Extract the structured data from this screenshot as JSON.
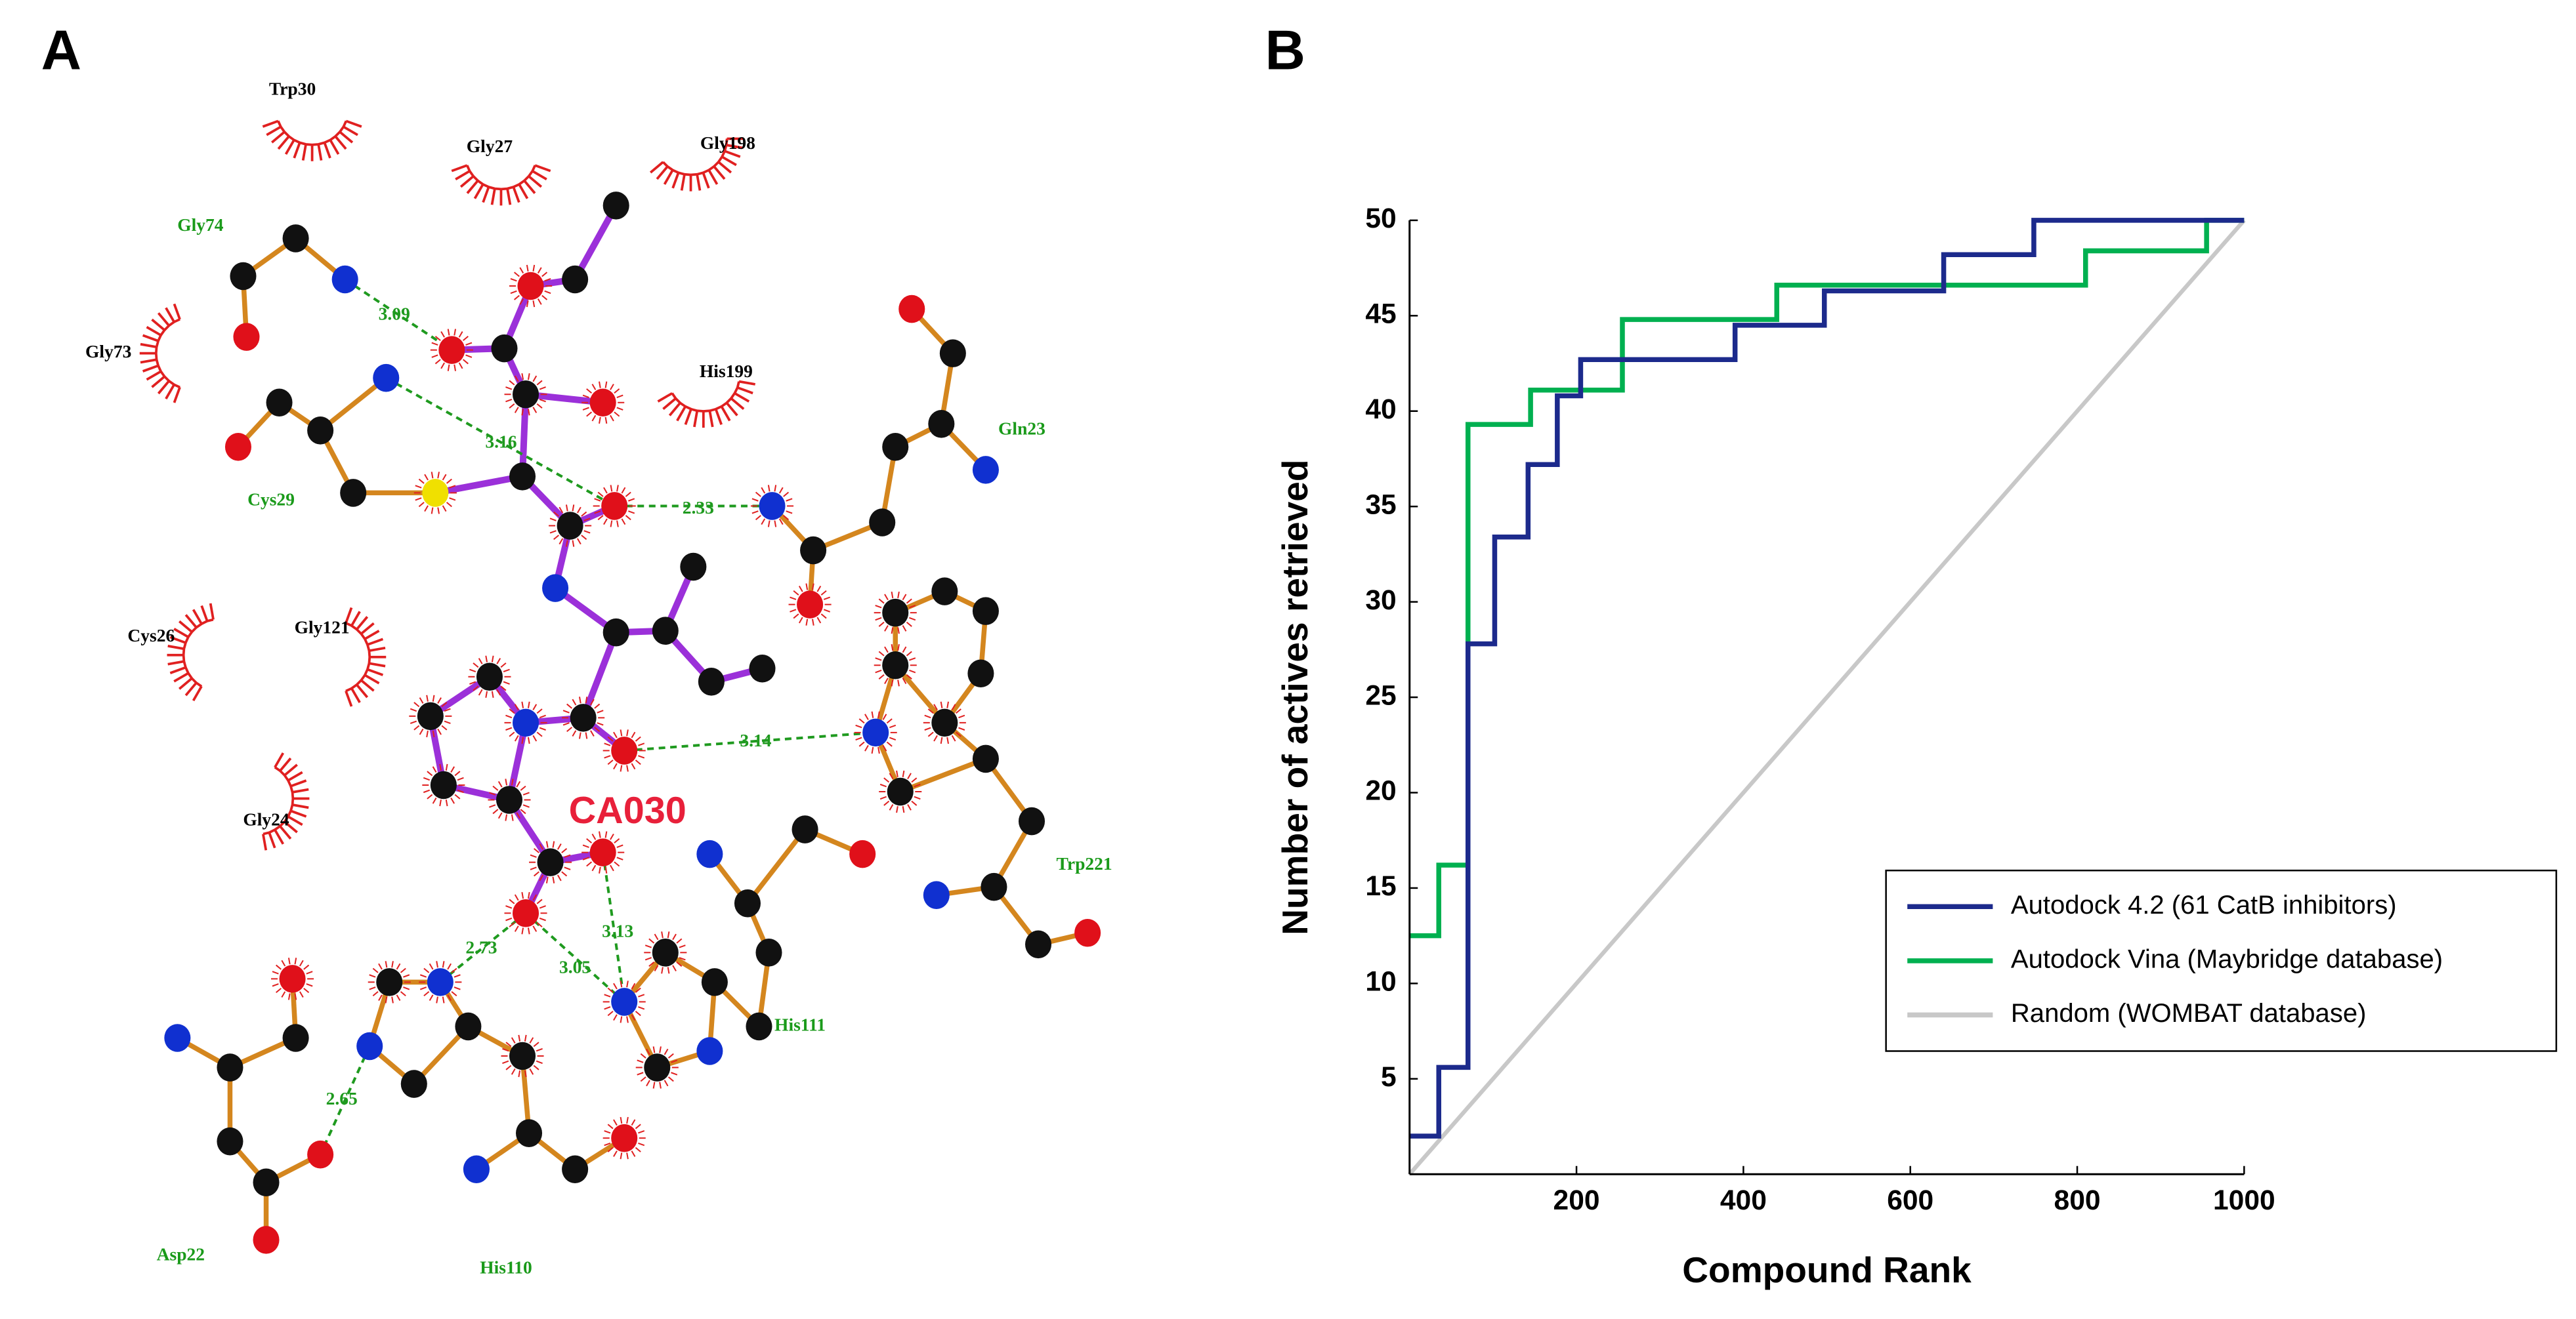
{
  "panels": [
    {
      "label": "A"
    },
    {
      "label": "B"
    }
  ],
  "diagram": {
    "ligand": "CA030",
    "residues": [
      "Gly74",
      "Cys29",
      "Gln23",
      "Trp221",
      "His111",
      "Asp22",
      "His110"
    ],
    "hydrophobic": [
      "Trp30",
      "Gly27",
      "Gly198",
      "Gly73",
      "His199",
      "Cys26",
      "Gly121",
      "Gly24"
    ],
    "hbonds": [
      3.09,
      3.16,
      2.33,
      3.14,
      2.73,
      3.05,
      3.13,
      2.65
    ]
  },
  "chart_data": {
    "type": "line",
    "xlabel": "Compound Rank",
    "ylabel": "Number of actives retrieved",
    "xlim": [
      0,
      1000
    ],
    "ylim": [
      0,
      50
    ],
    "xticks": [
      200,
      400,
      600,
      800,
      1000
    ],
    "yticks": [
      5,
      10,
      15,
      20,
      25,
      30,
      35,
      40,
      45,
      50
    ],
    "legend": "lower right",
    "series": [
      {
        "name": "Autodock 4.2 (61 CatB inhibitors)",
        "color": "#1c2a8c",
        "step": true,
        "x": [
          0,
          35,
          70,
          102,
          142,
          177,
          205,
          390,
          497,
          640,
          748,
          1000
        ],
        "values": [
          2,
          5.6,
          27.8,
          33.4,
          37.2,
          40.8,
          42.7,
          44.5,
          46.3,
          48.2,
          50,
          50
        ]
      },
      {
        "name": "Autodock Vina (Maybridge database)",
        "color": "#00b050",
        "step": true,
        "x": [
          0,
          35,
          70,
          145,
          255,
          440,
          810,
          955,
          1000
        ],
        "values": [
          12.5,
          16.2,
          39.3,
          41.1,
          44.8,
          46.6,
          48.4,
          50,
          50
        ]
      },
      {
        "name": "Random (WOMBAT database)",
        "color": "#c8c8c8",
        "step": false,
        "x": [
          0,
          1000
        ],
        "values": [
          0,
          50
        ]
      }
    ]
  }
}
